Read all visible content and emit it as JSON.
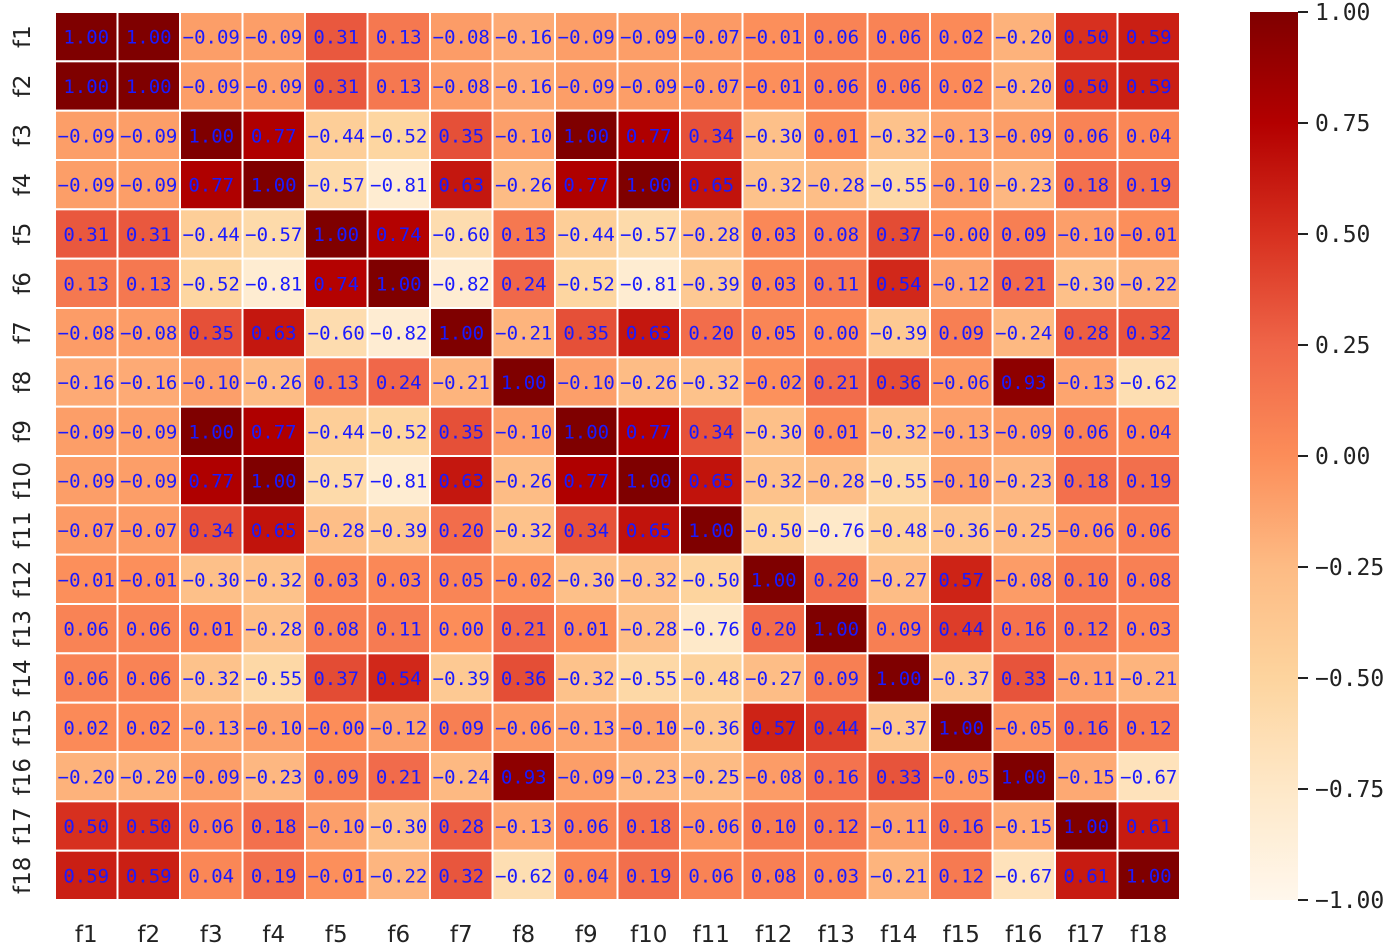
{
  "chart_data": {
    "type": "heatmap",
    "title": "",
    "xlabel": "",
    "ylabel": "",
    "x_labels": [
      "f1",
      "f2",
      "f3",
      "f4",
      "f5",
      "f6",
      "f7",
      "f8",
      "f9",
      "f10",
      "f11",
      "f12",
      "f13",
      "f14",
      "f15",
      "f16",
      "f17",
      "f18"
    ],
    "y_labels": [
      "f1",
      "f2",
      "f3",
      "f4",
      "f5",
      "f6",
      "f7",
      "f8",
      "f9",
      "f10",
      "f11",
      "f12",
      "f13",
      "f14",
      "f15",
      "f16",
      "f17",
      "f18"
    ],
    "values": [
      [
        1.0,
        1.0,
        -0.09,
        -0.09,
        0.31,
        0.13,
        -0.08,
        -0.16,
        -0.09,
        -0.09,
        -0.07,
        -0.01,
        0.06,
        0.06,
        0.02,
        -0.2,
        0.5,
        0.59
      ],
      [
        1.0,
        1.0,
        -0.09,
        -0.09,
        0.31,
        0.13,
        -0.08,
        -0.16,
        -0.09,
        -0.09,
        -0.07,
        -0.01,
        0.06,
        0.06,
        0.02,
        -0.2,
        0.5,
        0.59
      ],
      [
        -0.09,
        -0.09,
        1.0,
        0.77,
        -0.44,
        -0.52,
        0.35,
        -0.1,
        1.0,
        0.77,
        0.34,
        -0.3,
        0.01,
        -0.32,
        -0.13,
        -0.09,
        0.06,
        0.04
      ],
      [
        -0.09,
        -0.09,
        0.77,
        1.0,
        -0.57,
        -0.81,
        0.63,
        -0.26,
        0.77,
        1.0,
        0.65,
        -0.32,
        -0.28,
        -0.55,
        -0.1,
        -0.23,
        0.18,
        0.19
      ],
      [
        0.31,
        0.31,
        -0.44,
        -0.57,
        1.0,
        0.74,
        -0.6,
        0.13,
        -0.44,
        -0.57,
        -0.28,
        0.03,
        0.08,
        0.37,
        -0.0,
        0.09,
        -0.1,
        -0.01
      ],
      [
        0.13,
        0.13,
        -0.52,
        -0.81,
        0.74,
        1.0,
        -0.82,
        0.24,
        -0.52,
        -0.81,
        -0.39,
        0.03,
        0.11,
        0.54,
        -0.12,
        0.21,
        -0.3,
        -0.22
      ],
      [
        -0.08,
        -0.08,
        0.35,
        0.63,
        -0.6,
        -0.82,
        1.0,
        -0.21,
        0.35,
        0.63,
        0.2,
        0.05,
        0.0,
        -0.39,
        0.09,
        -0.24,
        0.28,
        0.32
      ],
      [
        -0.16,
        -0.16,
        -0.1,
        -0.26,
        0.13,
        0.24,
        -0.21,
        1.0,
        -0.1,
        -0.26,
        -0.32,
        -0.02,
        0.21,
        0.36,
        -0.06,
        0.93,
        -0.13,
        -0.62
      ],
      [
        -0.09,
        -0.09,
        1.0,
        0.77,
        -0.44,
        -0.52,
        0.35,
        -0.1,
        1.0,
        0.77,
        0.34,
        -0.3,
        0.01,
        -0.32,
        -0.13,
        -0.09,
        0.06,
        0.04
      ],
      [
        -0.09,
        -0.09,
        0.77,
        1.0,
        -0.57,
        -0.81,
        0.63,
        -0.26,
        0.77,
        1.0,
        0.65,
        -0.32,
        -0.28,
        -0.55,
        -0.1,
        -0.23,
        0.18,
        0.19
      ],
      [
        -0.07,
        -0.07,
        0.34,
        0.65,
        -0.28,
        -0.39,
        0.2,
        -0.32,
        0.34,
        0.65,
        1.0,
        -0.5,
        -0.76,
        -0.48,
        -0.36,
        -0.25,
        -0.06,
        0.06
      ],
      [
        -0.01,
        -0.01,
        -0.3,
        -0.32,
        0.03,
        0.03,
        0.05,
        -0.02,
        -0.3,
        -0.32,
        -0.5,
        1.0,
        0.2,
        -0.27,
        0.57,
        -0.08,
        0.1,
        0.08
      ],
      [
        0.06,
        0.06,
        0.01,
        -0.28,
        0.08,
        0.11,
        0.0,
        0.21,
        0.01,
        -0.28,
        -0.76,
        0.2,
        1.0,
        0.09,
        0.44,
        0.16,
        0.12,
        0.03
      ],
      [
        0.06,
        0.06,
        -0.32,
        -0.55,
        0.37,
        0.54,
        -0.39,
        0.36,
        -0.32,
        -0.55,
        -0.48,
        -0.27,
        0.09,
        1.0,
        -0.37,
        0.33,
        -0.11,
        -0.21
      ],
      [
        0.02,
        0.02,
        -0.13,
        -0.1,
        -0.0,
        -0.12,
        0.09,
        -0.06,
        -0.13,
        -0.1,
        -0.36,
        0.57,
        0.44,
        -0.37,
        1.0,
        -0.05,
        0.16,
        0.12
      ],
      [
        -0.2,
        -0.2,
        -0.09,
        -0.23,
        0.09,
        0.21,
        -0.24,
        0.93,
        -0.09,
        -0.23,
        -0.25,
        -0.08,
        0.16,
        0.33,
        -0.05,
        1.0,
        -0.15,
        -0.67
      ],
      [
        0.5,
        0.5,
        0.06,
        0.18,
        -0.1,
        -0.3,
        0.28,
        -0.13,
        0.06,
        0.18,
        -0.06,
        0.1,
        0.12,
        -0.11,
        0.16,
        -0.15,
        1.0,
        0.61
      ],
      [
        0.59,
        0.59,
        0.04,
        0.19,
        -0.01,
        -0.22,
        0.32,
        -0.62,
        0.04,
        0.19,
        0.06,
        0.08,
        0.03,
        -0.21,
        0.12,
        -0.67,
        0.61,
        1.0
      ]
    ],
    "vmin": -1.0,
    "vmax": 1.0,
    "colormap": [
      "#fff7ec",
      "#fee8c8",
      "#fdd49e",
      "#fdbb84",
      "#fc8d59",
      "#ef6548",
      "#d7301f",
      "#b30000",
      "#7f0000"
    ],
    "annotation_color": "#1a1aff",
    "colorbar_ticks": [
      1.0,
      0.75,
      0.5,
      0.25,
      0.0,
      -0.25,
      -0.5,
      -0.75,
      -1.0
    ],
    "colorbar_tick_labels": [
      "1.00",
      "0.75",
      "0.50",
      "0.25",
      "0.00",
      "−0.25",
      "−0.50",
      "−0.75",
      "−1.00"
    ],
    "grid": false,
    "legend": "colorbar-right"
  }
}
